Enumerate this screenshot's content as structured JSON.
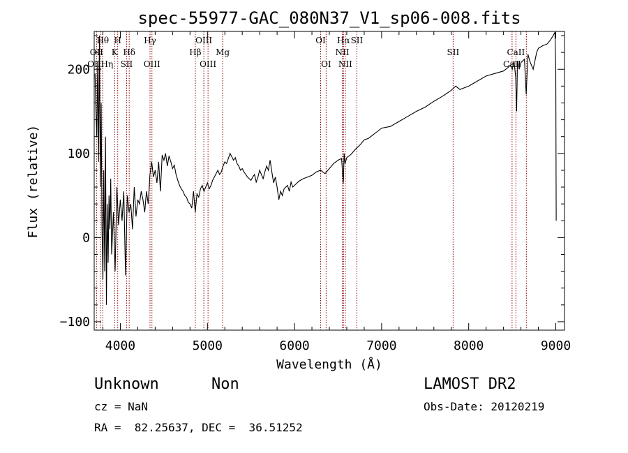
{
  "chart_data": {
    "type": "line",
    "title": "spec-55977-GAC_080N37_V1_sp06-008.fits",
    "xlabel": "Wavelength (Å)",
    "ylabel": "Flux (relative)",
    "xlim": [
      3700,
      9100
    ],
    "ylim": [
      -110,
      245
    ],
    "x_ticks": [
      4000,
      5000,
      6000,
      7000,
      8000,
      9000
    ],
    "y_ticks": [
      -100,
      0,
      100,
      200
    ],
    "grid": false,
    "series": [
      {
        "x": [
          3710,
          3720,
          3730,
          3740,
          3750,
          3760,
          3770,
          3780,
          3790,
          3800,
          3810,
          3820,
          3830,
          3840,
          3850,
          3860,
          3870,
          3880,
          3890,
          3900,
          3920,
          3940,
          3960,
          3980,
          4000,
          4020,
          4040,
          4060,
          4080,
          4100,
          4120,
          4140,
          4160,
          4180,
          4200,
          4220,
          4240,
          4260,
          4280,
          4300,
          4320,
          4340,
          4360,
          4380,
          4400,
          4420,
          4440,
          4460,
          4480,
          4500,
          4520,
          4540,
          4560,
          4580,
          4600,
          4620,
          4640,
          4660,
          4680,
          4700,
          4720,
          4740,
          4760,
          4780,
          4800,
          4820,
          4840,
          4860,
          4880,
          4900,
          4920,
          4940,
          4960,
          4980,
          5000,
          5020,
          5040,
          5060,
          5080,
          5100,
          5120,
          5140,
          5160,
          5180,
          5200,
          5220,
          5240,
          5260,
          5280,
          5300,
          5320,
          5340,
          5360,
          5380,
          5400,
          5420,
          5440,
          5460,
          5480,
          5500,
          5520,
          5540,
          5560,
          5580,
          5600,
          5620,
          5640,
          5660,
          5680,
          5700,
          5720,
          5740,
          5760,
          5780,
          5800,
          5820,
          5840,
          5860,
          5880,
          5900,
          5920,
          5940,
          5960,
          5980,
          6000,
          6050,
          6100,
          6150,
          6200,
          6250,
          6300,
          6350,
          6400,
          6450,
          6500,
          6540,
          6560,
          6570,
          6580,
          6600,
          6650,
          6700,
          6750,
          6800,
          6850,
          6900,
          6950,
          7000,
          7100,
          7200,
          7300,
          7400,
          7500,
          7600,
          7700,
          7800,
          7850,
          7900,
          8000,
          8100,
          8200,
          8300,
          8400,
          8450,
          8480,
          8500,
          8520,
          8540,
          8550,
          8560,
          8580,
          8600,
          8640,
          8660,
          8680,
          8700,
          8740,
          8780,
          8800,
          8850,
          8900,
          8940,
          8970,
          8990,
          9000,
          9005
        ],
        "y": [
          195,
          150,
          120,
          210,
          90,
          240,
          60,
          160,
          10,
          -50,
          80,
          -40,
          120,
          -80,
          40,
          -30,
          50,
          10,
          70,
          -20,
          30,
          -40,
          60,
          15,
          45,
          20,
          55,
          -45,
          50,
          30,
          40,
          10,
          60,
          25,
          45,
          40,
          55,
          45,
          30,
          55,
          40,
          75,
          90,
          72,
          80,
          65,
          90,
          55,
          98,
          92,
          100,
          85,
          97,
          90,
          82,
          86,
          75,
          68,
          62,
          58,
          55,
          50,
          48,
          42,
          40,
          35,
          55,
          30,
          52,
          48,
          58,
          62,
          55,
          60,
          65,
          58,
          62,
          68,
          72,
          76,
          80,
          75,
          78,
          85,
          90,
          88,
          94,
          100,
          96,
          92,
          95,
          88,
          85,
          80,
          82,
          78,
          75,
          72,
          70,
          68,
          72,
          75,
          66,
          72,
          80,
          75,
          70,
          78,
          85,
          80,
          92,
          78,
          65,
          72,
          60,
          45,
          55,
          50,
          58,
          60,
          62,
          55,
          66,
          60,
          62,
          67,
          70,
          72,
          74,
          78,
          80,
          76,
          82,
          88,
          92,
          94,
          65,
          100,
          88,
          95,
          99,
          105,
          110,
          116,
          118,
          122,
          126,
          130,
          132,
          138,
          144,
          150,
          155,
          162,
          168,
          175,
          180,
          176,
          180,
          186,
          192,
          195,
          198,
          202,
          205,
          200,
          210,
          190,
          150,
          210,
          200,
          208,
          212,
          170,
          218,
          210,
          200,
          220,
          225,
          228,
          230,
          235,
          240,
          244,
          200,
          20
        ]
      }
    ],
    "line_markers": [
      {
        "label": "Hθ",
        "x": 3798,
        "row": 1
      },
      {
        "label": "OII",
        "x": 3727,
        "row": 2
      },
      {
        "label": "OIIHη",
        "x": 3770,
        "row": 3
      },
      {
        "label": "H",
        "x": 3970,
        "row": 1
      },
      {
        "label": "K",
        "x": 3934,
        "row": 2
      },
      {
        "label": "Hδ",
        "x": 4102,
        "row": 2
      },
      {
        "label": "SII",
        "x": 4072,
        "row": 3
      },
      {
        "label": "Hγ",
        "x": 4341,
        "row": 1
      },
      {
        "label": "OIII",
        "x": 4363,
        "row": 3
      },
      {
        "label": "OIII",
        "x": 4959,
        "row": 1
      },
      {
        "label": "Hβ",
        "x": 4861,
        "row": 2
      },
      {
        "label": "Mg",
        "x": 5175,
        "row": 2
      },
      {
        "label": "OIII",
        "x": 5007,
        "row": 3
      },
      {
        "label": "OI",
        "x": 6300,
        "row": 1
      },
      {
        "label": "OI",
        "x": 6363,
        "row": 3
      },
      {
        "label": "Hα",
        "x": 6563,
        "row": 1
      },
      {
        "label": "SII",
        "x": 6716,
        "row": 1
      },
      {
        "label": "NII",
        "x": 6548,
        "row": 2
      },
      {
        "label": "NII",
        "x": 6583,
        "row": 3
      },
      {
        "label": "SII",
        "x": 7821,
        "row": 2
      },
      {
        "label": "CaII",
        "x": 8542,
        "row": 2
      },
      {
        "label": "CaII",
        "x": 8498,
        "row": 3
      },
      {
        "label": "",
        "x": 8662,
        "row": 0
      }
    ]
  },
  "footer": {
    "object_class": "Unknown",
    "object_subclass": "Non",
    "survey": "LAMOST DR2",
    "redshift": "cz = NaN",
    "obs_date": "Obs-Date: 20120219",
    "coords": "RA =  82.25637, DEC =  36.51252"
  },
  "colors": {
    "spectrum": "#000000",
    "marker_line": "#8b0000",
    "axis": "#000000"
  }
}
